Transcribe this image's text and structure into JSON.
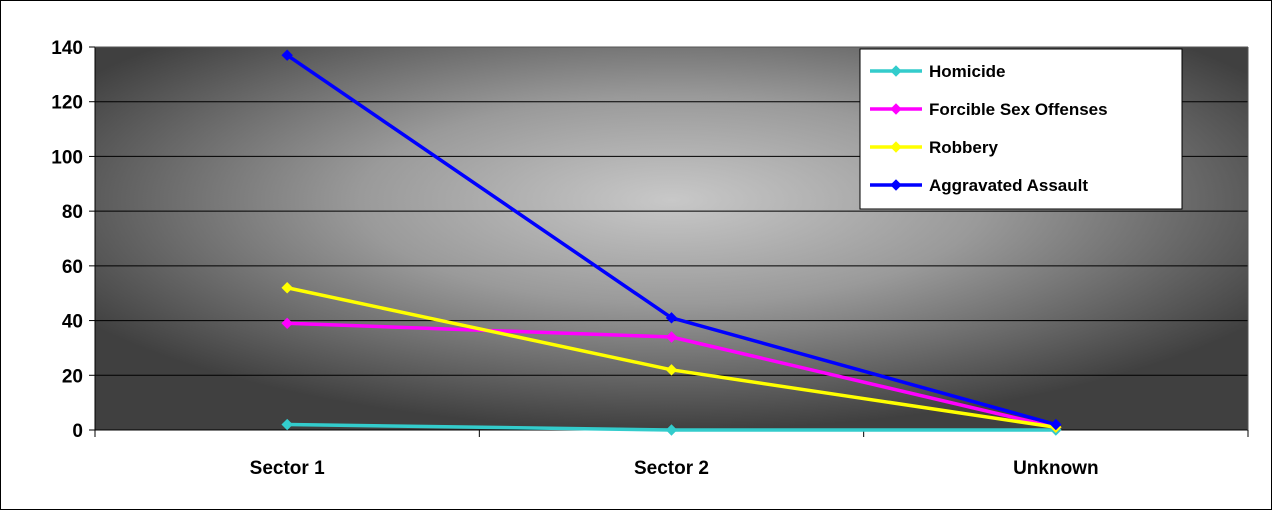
{
  "chart_data": {
    "type": "line",
    "categories": [
      "Sector 1",
      "Sector 2",
      "Unknown"
    ],
    "ylim": [
      0,
      140
    ],
    "yticks": [
      0,
      20,
      40,
      60,
      80,
      100,
      120,
      140
    ],
    "grid": true,
    "legend_position": "top-right",
    "series": [
      {
        "name": "Homicide",
        "values": [
          2,
          0,
          0
        ],
        "color": "#33cccc"
      },
      {
        "name": "Forcible Sex Offenses",
        "values": [
          39,
          34,
          1
        ],
        "color": "#ff00ff"
      },
      {
        "name": "Robbery",
        "values": [
          52,
          22,
          1
        ],
        "color": "#ffff00"
      },
      {
        "name": "Aggravated Assault",
        "values": [
          137,
          41,
          2
        ],
        "color": "#0000ff"
      }
    ]
  }
}
